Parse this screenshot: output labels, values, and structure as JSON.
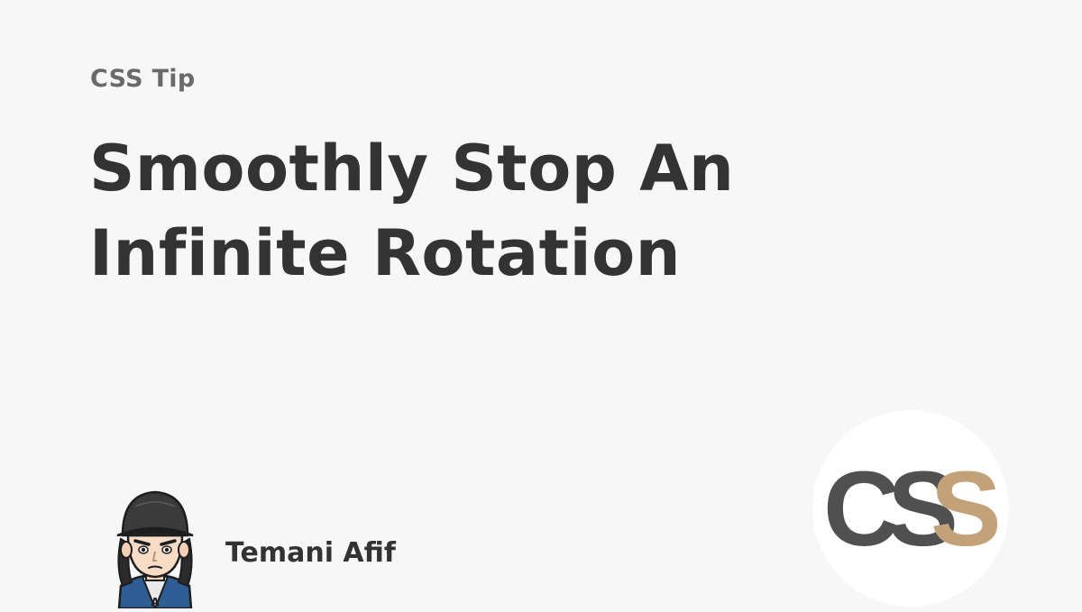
{
  "card": {
    "kicker": "CSS Tip",
    "title_lines": [
      "Smoothly Stop An",
      "Infinite Rotation"
    ],
    "author": "Temani Afif",
    "logo_text": "CSS"
  },
  "colors": {
    "background": "#f7f7f7",
    "title": "#333333",
    "kicker": "#6a6a6a",
    "logo_dark": "#505050",
    "logo_accent": "#c3a27a"
  },
  "icons": {
    "avatar": "cartoon-avatar-with-cap",
    "logo": "css-logo"
  }
}
